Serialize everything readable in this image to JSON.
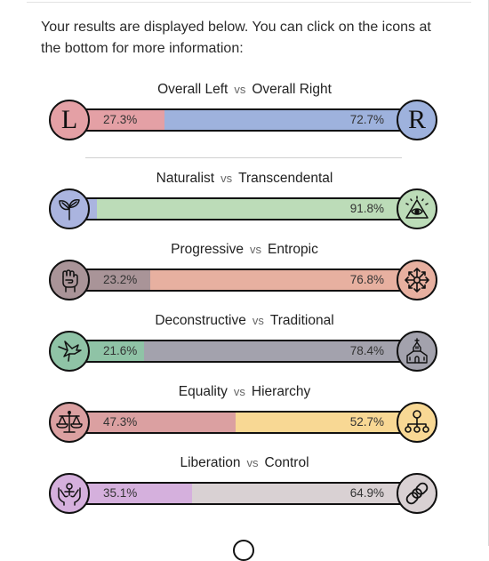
{
  "intro": "Your results are displayed below. You can click on the icons at the bottom for more information:",
  "vs_label": "vs",
  "axes": [
    {
      "left_label": "Overall Left",
      "right_label": "Overall Right",
      "left_value": 27.3,
      "right_value": 72.7,
      "left_pct": "27.3%",
      "right_pct": "72.7%",
      "left_color": "#e4a0a5",
      "right_color": "#9eb2dd",
      "left_icon": "L-letter-icon",
      "right_icon": "R-letter-icon",
      "left_glyph": "L",
      "right_glyph": "R"
    },
    {
      "left_label": "Naturalist",
      "right_label": "Transcendental",
      "left_value": 8.2,
      "right_value": 91.8,
      "left_pct": "",
      "right_pct": "91.8%",
      "left_color": "#aab4df",
      "right_color": "#bcdcb8",
      "left_icon": "sprout-icon",
      "right_icon": "eye-pyramid-icon"
    },
    {
      "left_label": "Progressive",
      "right_label": "Entropic",
      "left_value": 23.2,
      "right_value": 76.8,
      "left_pct": "23.2%",
      "right_pct": "76.8%",
      "left_color": "#a99498",
      "right_color": "#e7b0a0",
      "left_icon": "raised-fist-icon",
      "right_icon": "chaos-star-icon"
    },
    {
      "left_label": "Deconstructive",
      "right_label": "Traditional",
      "left_value": 21.6,
      "right_value": 78.4,
      "left_pct": "21.6%",
      "right_pct": "78.4%",
      "left_color": "#8fc3a6",
      "right_color": "#a3a2ad",
      "left_icon": "broken-bird-icon",
      "right_icon": "church-icon"
    },
    {
      "left_label": "Equality",
      "right_label": "Hierarchy",
      "left_value": 47.3,
      "right_value": 52.7,
      "left_pct": "47.3%",
      "right_pct": "52.7%",
      "left_color": "#dba0a1",
      "right_color": "#f8d894",
      "left_icon": "scales-icon",
      "right_icon": "hierarchy-icon"
    },
    {
      "left_label": "Liberation",
      "right_label": "Control",
      "left_value": 35.1,
      "right_value": 64.9,
      "left_pct": "35.1%",
      "right_pct": "64.9%",
      "left_color": "#d5b0dd",
      "right_color": "#d9d1d3",
      "left_icon": "raised-hands-icon",
      "right_icon": "chain-icon"
    }
  ]
}
